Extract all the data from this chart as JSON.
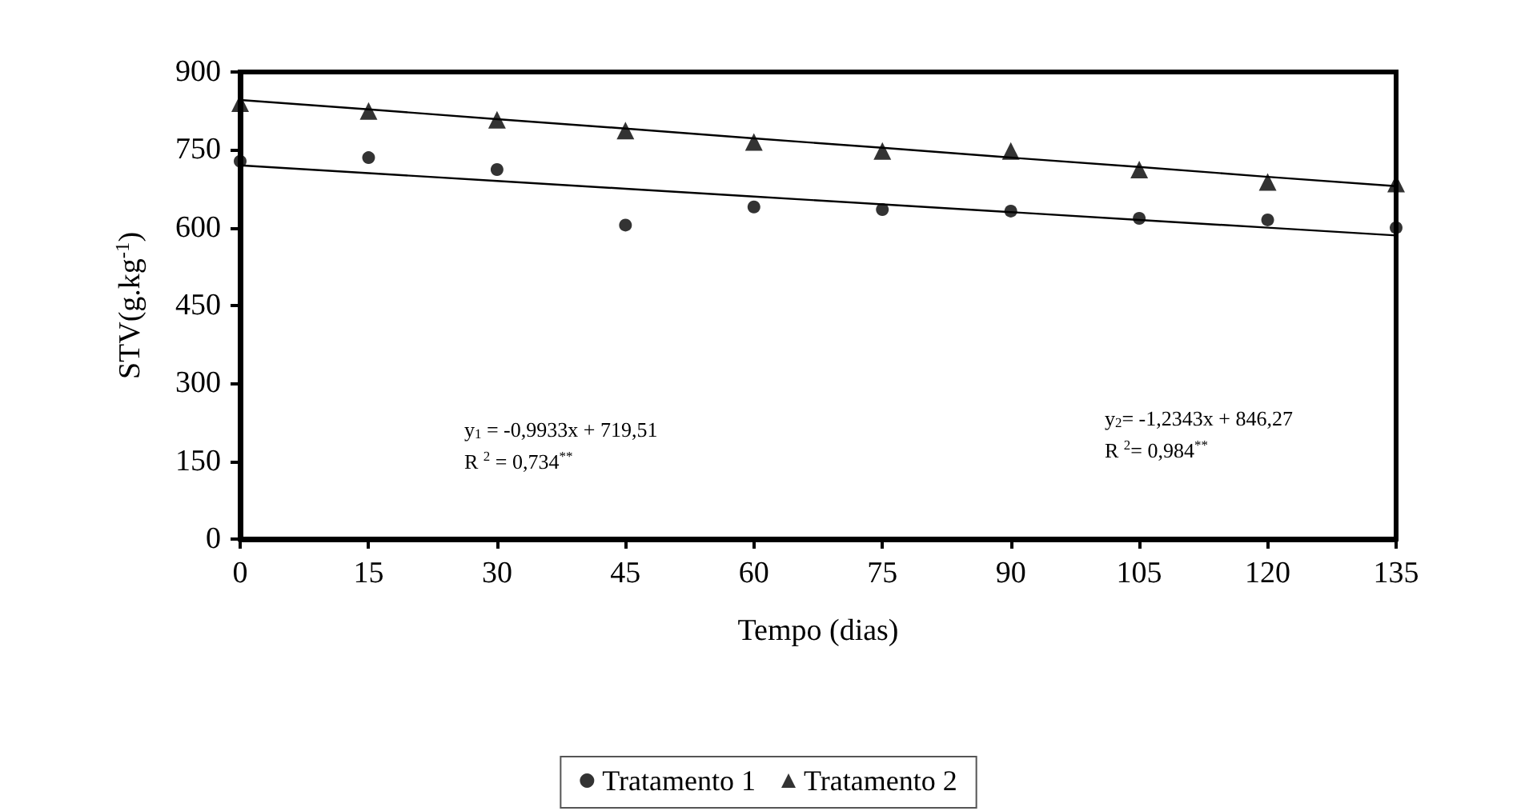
{
  "chart_data": {
    "type": "scatter",
    "xlabel": "Tempo (dias)",
    "ylabel": "STV(g.kg$^{-1}$)",
    "x": [
      0,
      15,
      30,
      45,
      60,
      75,
      90,
      105,
      120,
      135
    ],
    "series": [
      {
        "name": "Tratamento 1",
        "color": "#000000",
        "marker": "circle",
        "values": [
          728,
          735,
          712,
          605,
          640,
          635,
          632,
          618,
          615,
          600
        ]
      },
      {
        "name": "Tratamento 2",
        "color": "#000000",
        "marker": "triangle",
        "values": [
          840,
          825,
          808,
          787,
          765,
          748,
          748,
          712,
          688,
          685
        ]
      },
      {
        "type": "line",
        "color": "#000000",
        "marker": "none",
        "line_style": "solid",
        "values": [
          720,
          705,
          690,
          675,
          660,
          645,
          630,
          615,
          600,
          585
        ]
      },
      {
        "type": "line",
        "color": "#000000",
        "marker": "none",
        "line_style": "solid",
        "values": [
          846,
          828,
          809,
          791,
          772,
          754,
          735,
          717,
          698,
          680
        ]
      }
    ],
    "xlim": [
      0,
      135
    ],
    "xticks": [
      0,
      15,
      30,
      45,
      60,
      75,
      90,
      105,
      120,
      135
    ],
    "ylim": [
      0,
      900
    ],
    "yticks": [
      0,
      150,
      300,
      450,
      600,
      750,
      900
    ],
    "grid": false,
    "legend": "bottom",
    "annotations": [
      "y$_{1}$ = -0,9933x + 719,51",
      "R $^{2}$ = 0,734$^{**}$",
      "y$_{2}$= -1,2343x + 846,27",
      "R $^{2}$= 0,984$^{**}$"
    ]
  }
}
